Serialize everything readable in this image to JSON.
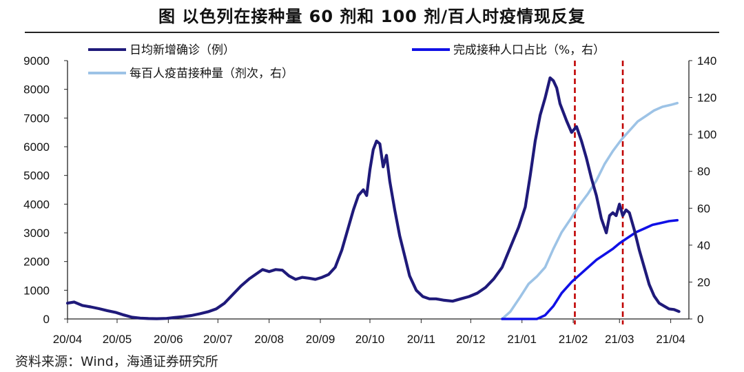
{
  "title": "图  以色列在接种量 60 剂和 100 剂/百人时疫情现反复",
  "source": "资料来源：Wind，海通证券研究所",
  "colors": {
    "cases": "#1f1a7a",
    "vaccinated": "#1010e6",
    "doses": "#9dc3e6",
    "marker": "#c00000",
    "axis": "#222222"
  },
  "chart_data": {
    "type": "line",
    "x_ticks": [
      "20/04",
      "20/05",
      "20/06",
      "20/07",
      "20/08",
      "20/09",
      "20/10",
      "20/11",
      "20/12",
      "21/01",
      "21/02",
      "21/03",
      "21/04"
    ],
    "y_left": {
      "ticks": [
        "0",
        "1000",
        "2000",
        "3000",
        "4000",
        "5000",
        "6000",
        "7000",
        "8000",
        "9000"
      ],
      "range": [
        0,
        9000
      ]
    },
    "y_right": {
      "ticks": [
        "0",
        "20",
        "40",
        "60",
        "80",
        "100",
        "120",
        "140"
      ],
      "range": [
        0,
        140
      ]
    },
    "vertical_markers": [
      "2021-02-02",
      "2021-03-03"
    ],
    "series": [
      {
        "name": "日均新增确诊（例）",
        "axis": "left",
        "points": [
          [
            "2020-04-01",
            550
          ],
          [
            "2020-04-05",
            590
          ],
          [
            "2020-04-10",
            470
          ],
          [
            "2020-04-15",
            420
          ],
          [
            "2020-04-20",
            360
          ],
          [
            "2020-04-25",
            290
          ],
          [
            "2020-04-30",
            230
          ],
          [
            "2020-05-05",
            140
          ],
          [
            "2020-05-10",
            60
          ],
          [
            "2020-05-15",
            30
          ],
          [
            "2020-05-20",
            15
          ],
          [
            "2020-05-25",
            10
          ],
          [
            "2020-05-31",
            20
          ],
          [
            "2020-06-05",
            50
          ],
          [
            "2020-06-10",
            80
          ],
          [
            "2020-06-15",
            120
          ],
          [
            "2020-06-20",
            180
          ],
          [
            "2020-06-25",
            250
          ],
          [
            "2020-06-30",
            350
          ],
          [
            "2020-07-05",
            550
          ],
          [
            "2020-07-10",
            850
          ],
          [
            "2020-07-15",
            1150
          ],
          [
            "2020-07-20",
            1400
          ],
          [
            "2020-07-25",
            1600
          ],
          [
            "2020-07-28",
            1720
          ],
          [
            "2020-08-01",
            1650
          ],
          [
            "2020-08-05",
            1720
          ],
          [
            "2020-08-09",
            1700
          ],
          [
            "2020-08-13",
            1500
          ],
          [
            "2020-08-17",
            1380
          ],
          [
            "2020-08-21",
            1450
          ],
          [
            "2020-08-25",
            1420
          ],
          [
            "2020-08-29",
            1380
          ],
          [
            "2020-09-02",
            1450
          ],
          [
            "2020-09-06",
            1550
          ],
          [
            "2020-09-10",
            1800
          ],
          [
            "2020-09-14",
            2400
          ],
          [
            "2020-09-18",
            3200
          ],
          [
            "2020-09-21",
            3800
          ],
          [
            "2020-09-24",
            4300
          ],
          [
            "2020-09-27",
            4500
          ],
          [
            "2020-09-29",
            4300
          ],
          [
            "2020-10-01",
            5200
          ],
          [
            "2020-10-03",
            5900
          ],
          [
            "2020-10-05",
            6200
          ],
          [
            "2020-10-07",
            6100
          ],
          [
            "2020-10-09",
            5300
          ],
          [
            "2020-10-11",
            5700
          ],
          [
            "2020-10-13",
            4800
          ],
          [
            "2020-10-16",
            3800
          ],
          [
            "2020-10-19",
            2900
          ],
          [
            "2020-10-22",
            2200
          ],
          [
            "2020-10-25",
            1500
          ],
          [
            "2020-10-29",
            1000
          ],
          [
            "2020-11-02",
            780
          ],
          [
            "2020-11-06",
            700
          ],
          [
            "2020-11-10",
            700
          ],
          [
            "2020-11-15",
            650
          ],
          [
            "2020-11-20",
            620
          ],
          [
            "2020-11-25",
            700
          ],
          [
            "2020-11-30",
            780
          ],
          [
            "2020-12-05",
            900
          ],
          [
            "2020-12-10",
            1100
          ],
          [
            "2020-12-15",
            1400
          ],
          [
            "2020-12-20",
            1800
          ],
          [
            "2020-12-25",
            2500
          ],
          [
            "2020-12-30",
            3200
          ],
          [
            "2021-01-03",
            3900
          ],
          [
            "2021-01-06",
            5000
          ],
          [
            "2021-01-09",
            6200
          ],
          [
            "2021-01-12",
            7100
          ],
          [
            "2021-01-15",
            7700
          ],
          [
            "2021-01-18",
            8400
          ],
          [
            "2021-01-20",
            8300
          ],
          [
            "2021-01-22",
            8050
          ],
          [
            "2021-01-24",
            7500
          ],
          [
            "2021-01-26",
            7200
          ],
          [
            "2021-01-28",
            6900
          ],
          [
            "2021-01-31",
            6500
          ],
          [
            "2021-02-03",
            6700
          ],
          [
            "2021-02-06",
            6200
          ],
          [
            "2021-02-09",
            5600
          ],
          [
            "2021-02-12",
            4900
          ],
          [
            "2021-02-15",
            4300
          ],
          [
            "2021-02-18",
            3500
          ],
          [
            "2021-02-21",
            3000
          ],
          [
            "2021-02-23",
            3600
          ],
          [
            "2021-02-25",
            3700
          ],
          [
            "2021-02-27",
            3600
          ],
          [
            "2021-03-01",
            4000
          ],
          [
            "2021-03-03",
            3600
          ],
          [
            "2021-03-05",
            3800
          ],
          [
            "2021-03-07",
            3700
          ],
          [
            "2021-03-10",
            3100
          ],
          [
            "2021-03-13",
            2400
          ],
          [
            "2021-03-16",
            1800
          ],
          [
            "2021-03-19",
            1200
          ],
          [
            "2021-03-22",
            800
          ],
          [
            "2021-03-25",
            550
          ],
          [
            "2021-03-28",
            450
          ],
          [
            "2021-03-31",
            350
          ],
          [
            "2021-04-03",
            330
          ],
          [
            "2021-04-06",
            260
          ]
        ]
      },
      {
        "name": "完成接种人口占比（%，右）",
        "axis": "right",
        "points": [
          [
            "2020-12-20",
            0
          ],
          [
            "2021-01-10",
            0
          ],
          [
            "2021-01-15",
            2
          ],
          [
            "2021-01-20",
            7
          ],
          [
            "2021-01-25",
            14
          ],
          [
            "2021-01-31",
            20
          ],
          [
            "2021-02-05",
            24
          ],
          [
            "2021-02-10",
            28
          ],
          [
            "2021-02-15",
            32
          ],
          [
            "2021-02-20",
            35
          ],
          [
            "2021-02-25",
            38
          ],
          [
            "2021-03-01",
            41
          ],
          [
            "2021-03-06",
            44
          ],
          [
            "2021-03-11",
            47
          ],
          [
            "2021-03-16",
            49
          ],
          [
            "2021-03-21",
            51
          ],
          [
            "2021-03-26",
            52
          ],
          [
            "2021-03-31",
            53
          ],
          [
            "2021-04-05",
            53.5
          ]
        ]
      },
      {
        "name": "每百人疫苗接种量（剂次，右）",
        "axis": "right",
        "points": [
          [
            "2020-12-20",
            0
          ],
          [
            "2020-12-25",
            4
          ],
          [
            "2020-12-31",
            12
          ],
          [
            "2021-01-05",
            19
          ],
          [
            "2021-01-10",
            23
          ],
          [
            "2021-01-15",
            28
          ],
          [
            "2021-01-20",
            38
          ],
          [
            "2021-01-25",
            47
          ],
          [
            "2021-01-31",
            55
          ],
          [
            "2021-02-05",
            62
          ],
          [
            "2021-02-10",
            68
          ],
          [
            "2021-02-15",
            75
          ],
          [
            "2021-02-20",
            84
          ],
          [
            "2021-02-25",
            91
          ],
          [
            "2021-03-02",
            97
          ],
          [
            "2021-03-07",
            102
          ],
          [
            "2021-03-12",
            107
          ],
          [
            "2021-03-17",
            110
          ],
          [
            "2021-03-22",
            113
          ],
          [
            "2021-03-27",
            115
          ],
          [
            "2021-04-01",
            116
          ],
          [
            "2021-04-05",
            117
          ]
        ]
      }
    ]
  }
}
